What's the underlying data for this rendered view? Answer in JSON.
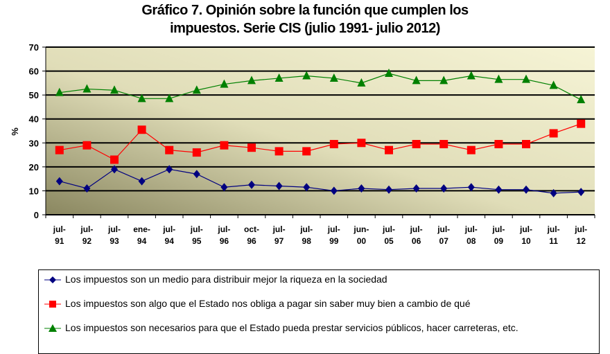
{
  "chart_data": {
    "type": "line",
    "title": "Gráfico 7. Opinión sobre la función que cumplen los impuestos. Serie CIS (julio 1991- julio 2012)",
    "title_lines": [
      "Gráfico 7. Opinión sobre la función que cumplen los",
      "impuestos. Serie CIS (julio 1991- julio 2012)"
    ],
    "ylabel": "%",
    "xlabel": "",
    "ylim": [
      0,
      70
    ],
    "yticks": [
      0,
      10,
      20,
      30,
      40,
      50,
      60,
      70
    ],
    "grid": true,
    "legend_position": "bottom",
    "categories": [
      [
        "jul-",
        "91"
      ],
      [
        "jul-",
        "92"
      ],
      [
        "jul-",
        "93"
      ],
      [
        "ene-",
        "94"
      ],
      [
        "jul-",
        "94"
      ],
      [
        "jul-",
        "95"
      ],
      [
        "jul-",
        "96"
      ],
      [
        "oct-",
        "96"
      ],
      [
        "jul-",
        "97"
      ],
      [
        "jul-",
        "98"
      ],
      [
        "jul-",
        "99"
      ],
      [
        "jun-",
        "00"
      ],
      [
        "jul-",
        "05"
      ],
      [
        "jul-",
        "06"
      ],
      [
        "jul-",
        "07"
      ],
      [
        "jul-",
        "08"
      ],
      [
        "jul-",
        "09"
      ],
      [
        "jul-",
        "10"
      ],
      [
        "jul-",
        "11"
      ],
      [
        "jul-",
        "12"
      ]
    ],
    "series": [
      {
        "name": "Los impuestos son un medio para distribuir mejor la riqueza en la sociedad",
        "color": "#000080",
        "marker": "diamond",
        "values": [
          14,
          11,
          19,
          14,
          19,
          17,
          11.5,
          12.5,
          12,
          11.5,
          10,
          11,
          10.5,
          11,
          11,
          11.5,
          10.5,
          10.5,
          9,
          9.5
        ]
      },
      {
        "name": "Los impuestos son algo que el Estado nos obliga a pagar sin saber muy bien a cambio de qué",
        "color": "#ff0000",
        "marker": "square",
        "values": [
          27,
          29,
          23,
          35.5,
          27,
          26,
          29,
          28,
          26.5,
          26.5,
          29.5,
          30,
          27,
          29.5,
          29.5,
          27,
          29.5,
          29.5,
          34,
          38
        ]
      },
      {
        "name": "Los impuestos son necesarios para que el Estado pueda prestar servicios públicos, hacer carreteras, etc.",
        "color": "#008000",
        "marker": "triangle",
        "values": [
          51,
          52.5,
          52,
          48.5,
          48.5,
          52,
          54.5,
          56,
          57,
          58,
          57,
          55,
          59,
          56,
          56,
          58,
          56.5,
          56.5,
          54,
          48
        ]
      }
    ]
  }
}
